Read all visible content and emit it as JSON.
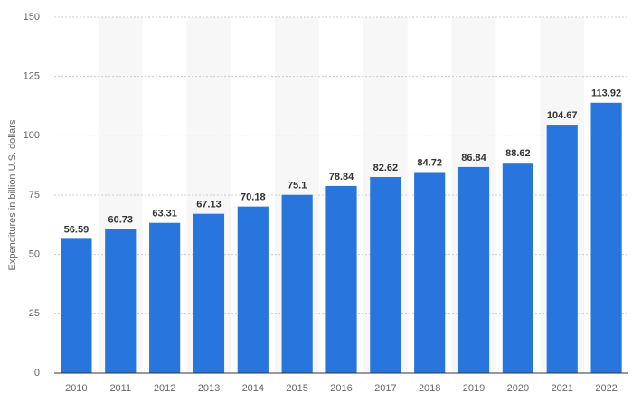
{
  "chart_data": {
    "type": "bar",
    "y_label": "Expenditures in billion U.S. dollars",
    "categories": [
      "2010",
      "2011",
      "2012",
      "2013",
      "2014",
      "2015",
      "2016",
      "2017",
      "2018",
      "2019",
      "2020",
      "2021",
      "2022"
    ],
    "values": [
      56.59,
      60.73,
      63.31,
      67.13,
      70.18,
      75.1,
      78.84,
      82.62,
      84.72,
      86.84,
      88.62,
      104.67,
      113.92
    ],
    "color": "#2876dd",
    "ylim": [
      0,
      150
    ],
    "yticks": [
      0,
      25,
      50,
      75,
      100,
      125,
      150
    ],
    "grid": true
  }
}
